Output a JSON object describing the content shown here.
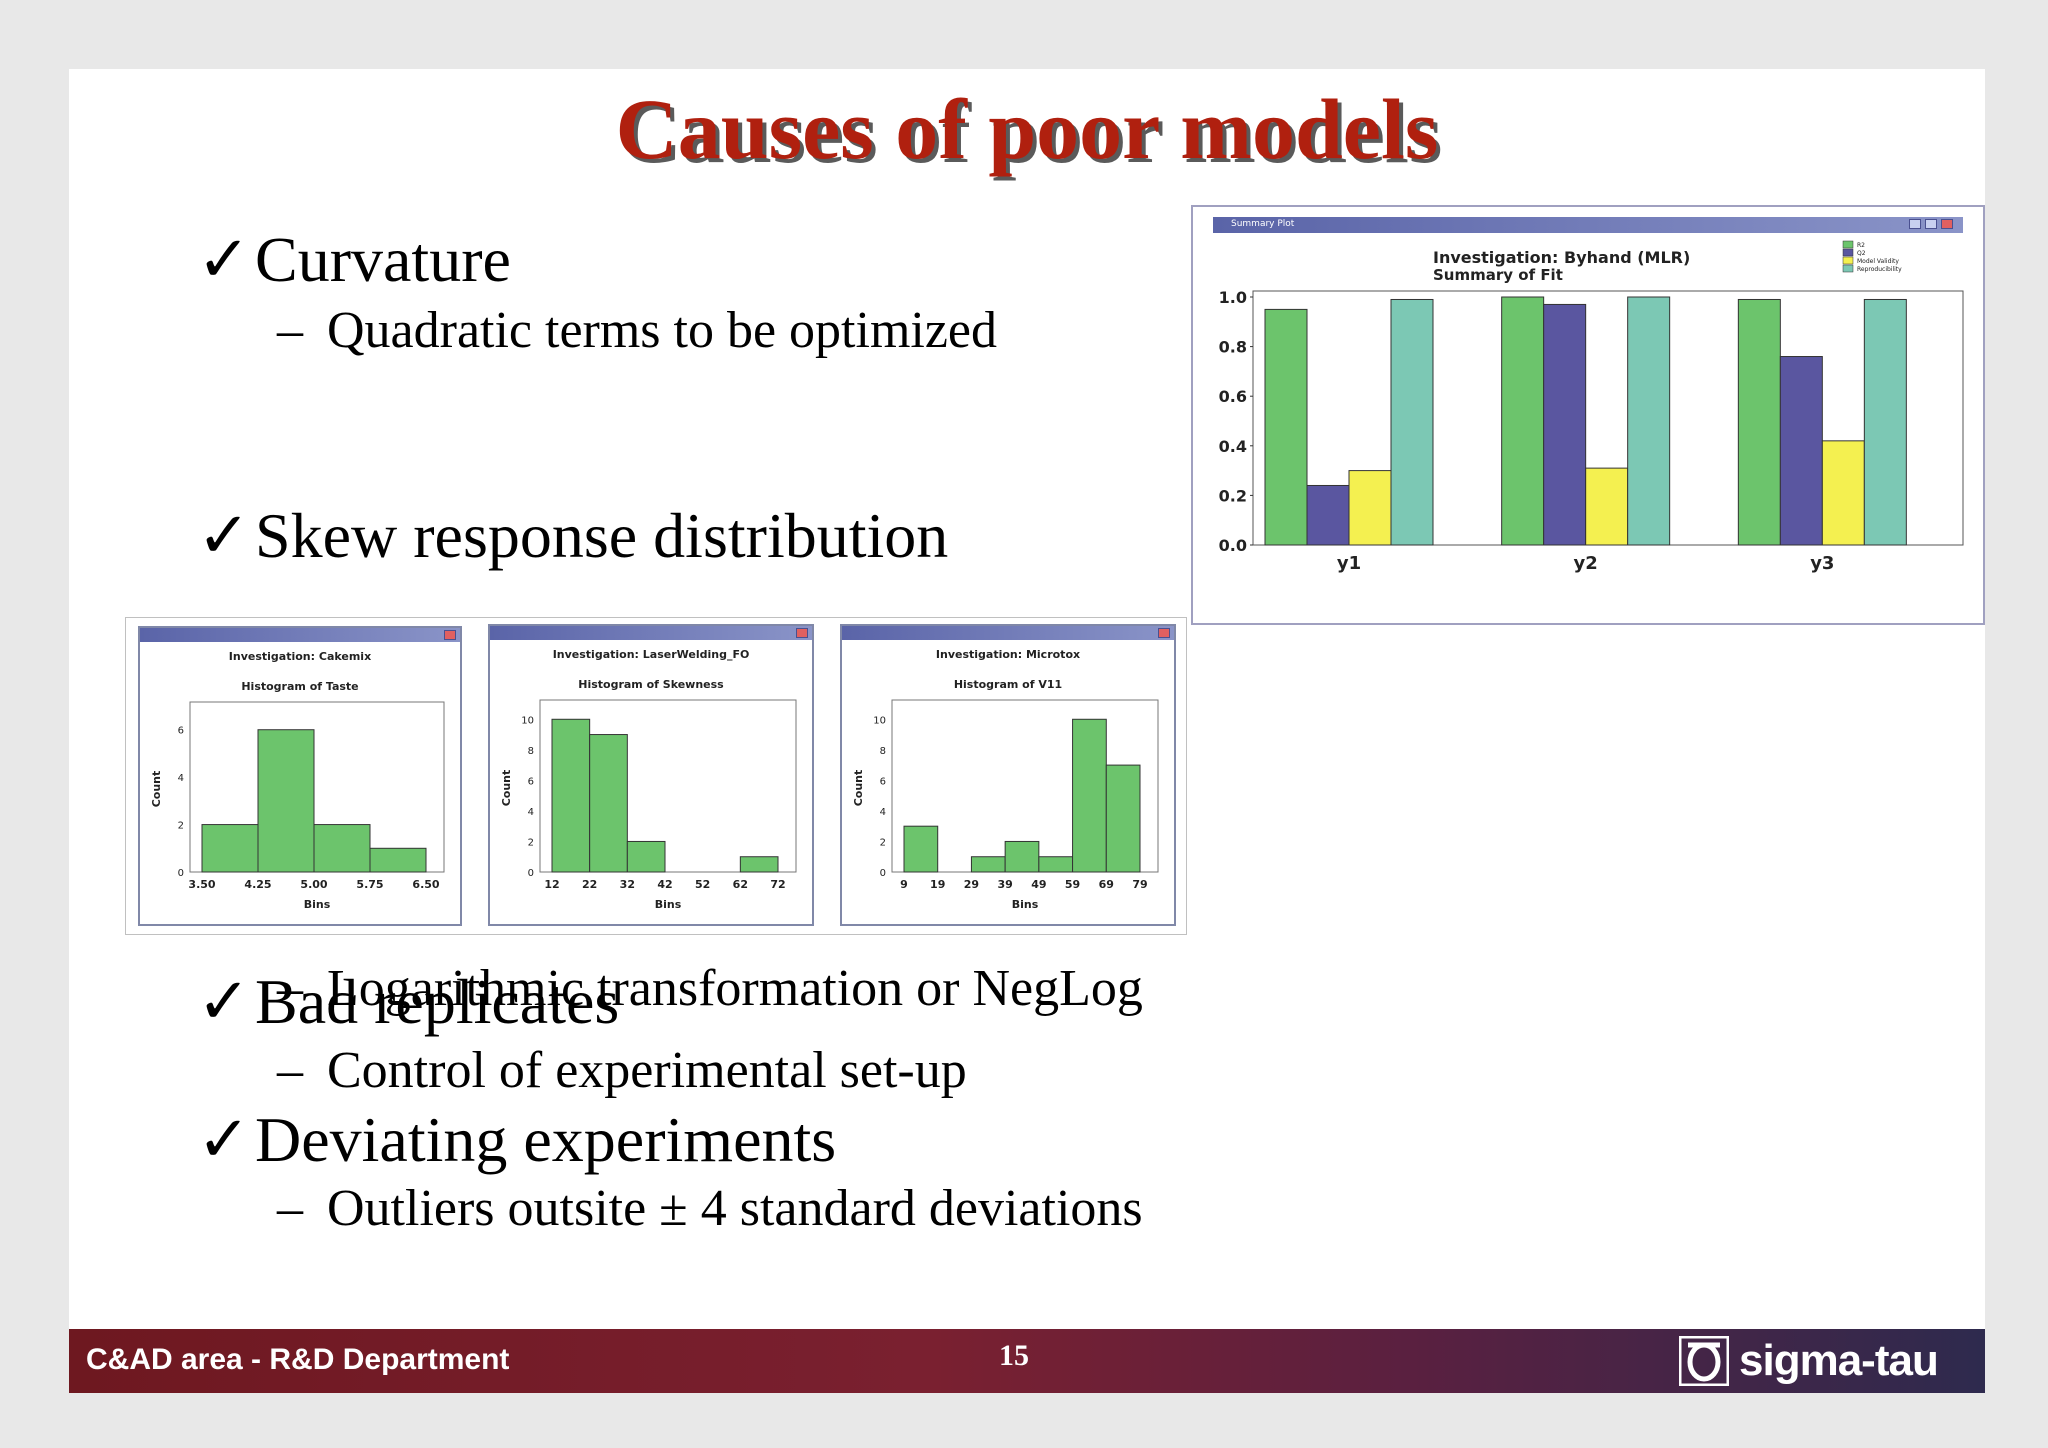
{
  "slide": {
    "title": "Causes of poor models",
    "check_glyph": "✓",
    "dash_glyph": "–",
    "bullets": [
      {
        "text": "Curvature",
        "sub": "Quadratic terms to be optimized"
      },
      {
        "text": "Skew response distribution",
        "sub": "Logarithmic transformation or NegLog"
      },
      {
        "text": "Bad replicates",
        "sub": "Control of experimental set-up"
      },
      {
        "text": "Deviating experiments",
        "sub": "Outliers outsite ± 4 standard deviations"
      }
    ],
    "footer": {
      "left": "C&AD area - R&D Department",
      "page": "15",
      "logo_text": "sigma-tau"
    }
  },
  "chart_data": [
    {
      "type": "bar",
      "window_title": "Summary Plot",
      "title": "Investigation: Byhand (MLR)",
      "subtitle": "Summary of Fit",
      "categories": [
        "y1",
        "y2",
        "y3"
      ],
      "series": [
        {
          "name": "R2",
          "color": "#6cc46c",
          "values": [
            0.95,
            1.0,
            0.99
          ]
        },
        {
          "name": "Q2",
          "color": "#5a56a0",
          "values": [
            0.24,
            0.97,
            0.76
          ]
        },
        {
          "name": "Model Validity",
          "color": "#f4f050",
          "values": [
            0.3,
            0.31,
            0.42
          ]
        },
        {
          "name": "Reproducibility",
          "color": "#7cc8b4",
          "values": [
            0.99,
            1.0,
            0.99
          ]
        }
      ],
      "ylim": [
        0,
        1.0
      ],
      "yticks": [
        "0.0",
        "0.2",
        "0.4",
        "0.6",
        "0.8",
        "1.0"
      ],
      "legend": "top-right"
    },
    {
      "type": "bar",
      "title": "Investigation: Cakemix",
      "subtitle": "Histogram of Taste",
      "xlabel": "Bins",
      "ylabel": "Count",
      "xticks": [
        "3.50",
        "4.25",
        "5.00",
        "5.75",
        "6.50"
      ],
      "yticks": [
        "0",
        "2",
        "4",
        "6"
      ],
      "ylim": [
        0,
        7
      ],
      "values": [
        2,
        6,
        2,
        1
      ],
      "color": "#6cc46c"
    },
    {
      "type": "bar",
      "title": "Investigation: LaserWelding_FO",
      "subtitle": "Histogram of Skewness",
      "xlabel": "Bins",
      "ylabel": "Count",
      "xticks": [
        "12",
        "22",
        "32",
        "42",
        "52",
        "62",
        "72"
      ],
      "yticks": [
        "0",
        "2",
        "4",
        "6",
        "8",
        "10"
      ],
      "ylim": [
        0,
        11
      ],
      "values": [
        10,
        9,
        2,
        0,
        0,
        1
      ],
      "color": "#6cc46c"
    },
    {
      "type": "bar",
      "title": "Investigation: Microtox",
      "subtitle": "Histogram of V11",
      "xlabel": "Bins",
      "ylabel": "Count",
      "xticks": [
        "9",
        "19",
        "29",
        "39",
        "49",
        "59",
        "69",
        "79"
      ],
      "yticks": [
        "0",
        "2",
        "4",
        "6",
        "8",
        "10"
      ],
      "ylim": [
        0,
        11
      ],
      "values": [
        3,
        0,
        1,
        2,
        1,
        10,
        7
      ],
      "color": "#6cc46c"
    }
  ]
}
